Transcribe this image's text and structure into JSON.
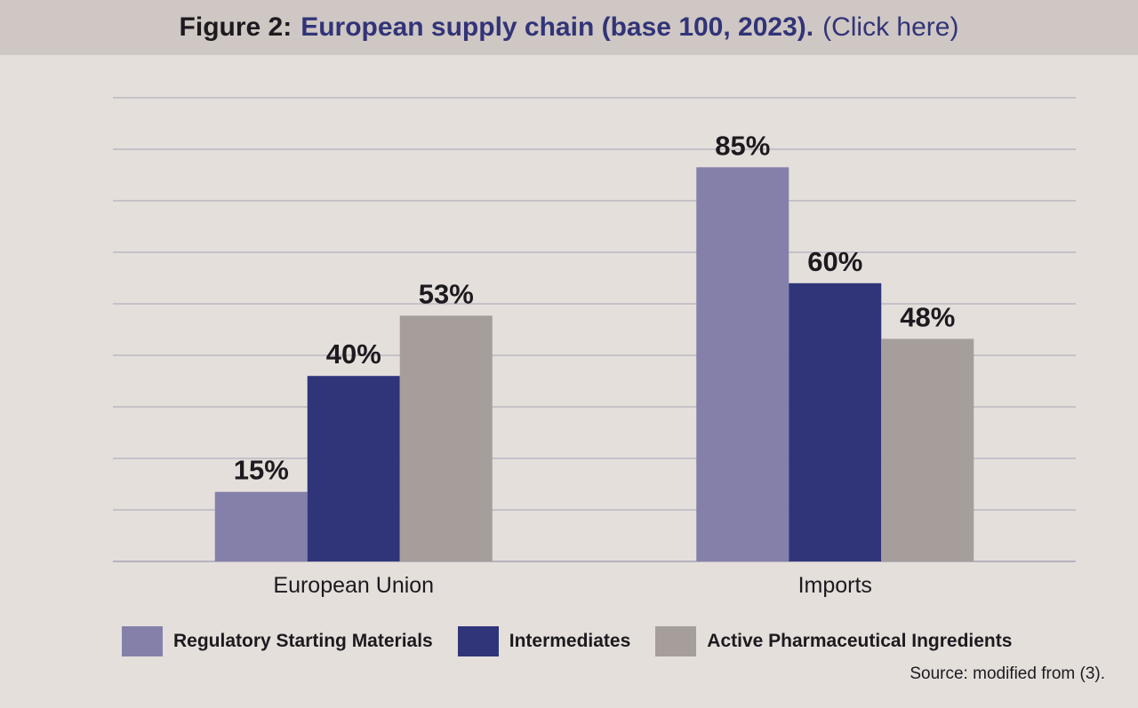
{
  "header": {
    "prefix": "Figure 2:",
    "title": "European supply chain (base 100, 2023).",
    "link": "(Click here)"
  },
  "colors": {
    "background": "#e4dfdb",
    "header_background": "#cfc7c3",
    "title_color": "#323478",
    "gridline": "#a9a3b4",
    "label_text": "#1d1a1f"
  },
  "chart_data": {
    "type": "bar",
    "title": "European supply chain (base 100, 2023).",
    "categories": [
      "European Union",
      "Imports"
    ],
    "series": [
      {
        "name": "Regulatory Starting Materials",
        "color": "#8580aa",
        "values": [
          15,
          85
        ],
        "labels": [
          "15%",
          "85%"
        ]
      },
      {
        "name": "Intermediates",
        "color": "#30357a",
        "values": [
          40,
          60
        ],
        "labels": [
          "40%",
          "60%"
        ]
      },
      {
        "name": "Active Pharmaceutical Ingredients",
        "color": "#a59e9a",
        "values": [
          53,
          48
        ],
        "labels": [
          "53%",
          "48%"
        ]
      }
    ],
    "xlabel": "",
    "ylabel": "",
    "ylim": [
      0,
      100
    ],
    "grid": true,
    "legend_position": "bottom"
  },
  "source": "Source: modified from (3)."
}
